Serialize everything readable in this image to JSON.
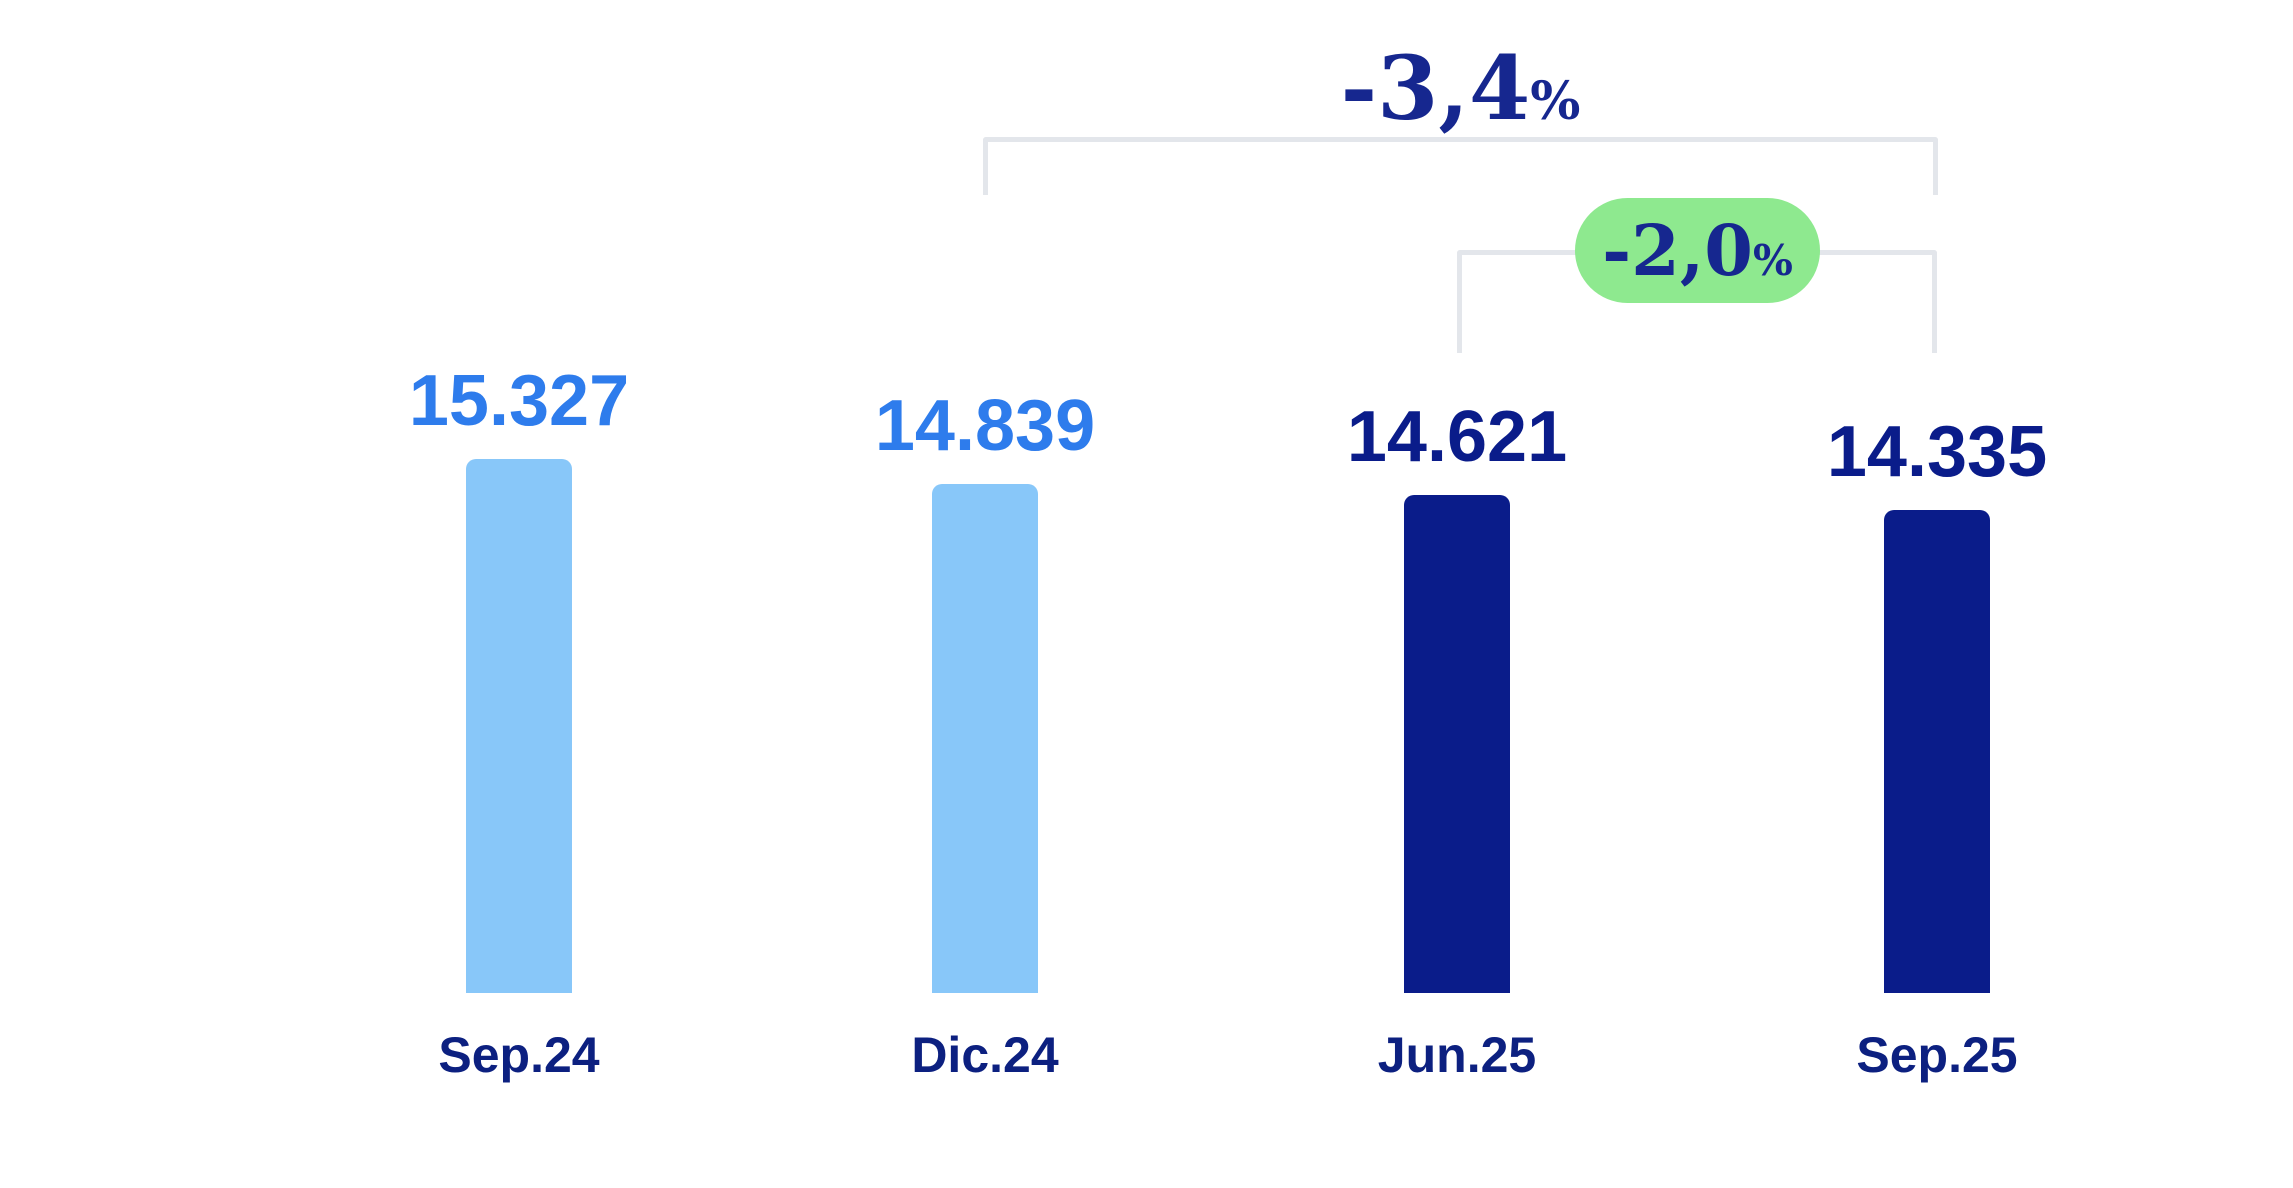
{
  "chart_data": {
    "type": "bar",
    "title": "",
    "xlabel": "",
    "ylabel": "",
    "categories": [
      "Sep.24",
      "Dic.24",
      "Jun.25",
      "Sep.25"
    ],
    "values": [
      15327,
      14839,
      14621,
      14335
    ],
    "value_labels": [
      "15.327",
      "14.839",
      "14.621",
      "14.335"
    ],
    "bar_colors": [
      "#88C7F9",
      "#88C7F9",
      "#0A1C8A",
      "#0A1C8A"
    ],
    "value_label_colors": [
      "#2E7CEC",
      "#2E7CEC",
      "#0A1C8A",
      "#0A1C8A"
    ],
    "ylim": [
      0,
      16000
    ],
    "grid": false,
    "legend": false,
    "annotations": [
      {
        "type": "comparison-bracket",
        "from": "Dic.24",
        "to": "Sep.25",
        "label": "-3,4%",
        "num": "-3,4",
        "pct": "%",
        "text_color": "#16278F",
        "line_color": "#E3E6EB"
      },
      {
        "type": "comparison-bracket",
        "from": "Jun.25",
        "to": "Sep.25",
        "label": "-2,0%",
        "num": "-2,0",
        "pct": "%",
        "text_color": "#16278F",
        "line_color": "#E3E6EB",
        "badge_color": "#8EE98F"
      }
    ],
    "colors": {
      "light_blue_bar": "#88C7F9",
      "navy_bar": "#0A1C8A",
      "blue_value_text": "#2E7CEC",
      "navy_axis_text": "#0C2080",
      "percent_text": "#16278F",
      "bracket_line": "#E3E6EB",
      "badge_green": "#8EE98F",
      "background": "#FFFFFF"
    }
  }
}
